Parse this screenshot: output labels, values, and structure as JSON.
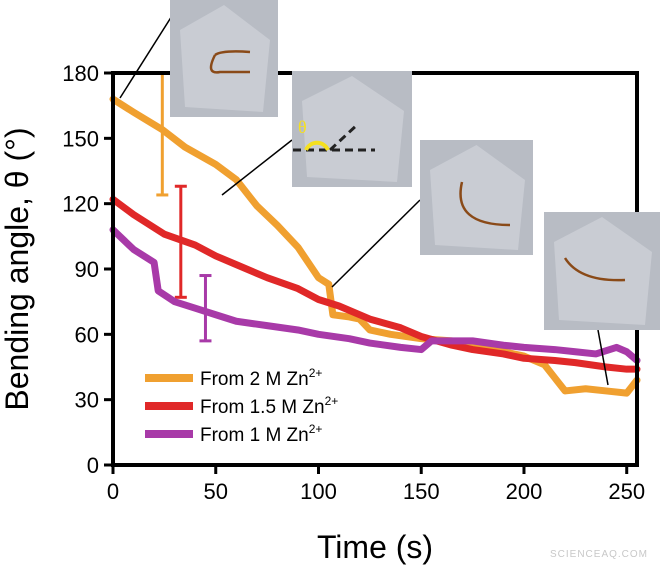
{
  "chart_data": {
    "type": "line",
    "xlabel": "Time (s)",
    "ylabel": "Bending angle, θ (°)",
    "xlim": [
      0,
      255
    ],
    "ylim": [
      0,
      180
    ],
    "xticks": [
      0,
      50,
      100,
      150,
      200,
      250
    ],
    "yticks": [
      0,
      30,
      60,
      90,
      120,
      150,
      180
    ],
    "grid": false,
    "legend_placement": "bottom-left",
    "series": [
      {
        "name": "From 2 M Zn2+",
        "label_main": "From 2 M Zn",
        "label_sup": "2+",
        "color": "#f0a030",
        "x": [
          0,
          10,
          24,
          35,
          50,
          60,
          70,
          80,
          90,
          100,
          105,
          107,
          115,
          120,
          125,
          135,
          150,
          165,
          175,
          190,
          200,
          210,
          215,
          220,
          230,
          240,
          250,
          255
        ],
        "y": [
          168,
          162,
          154,
          146,
          138,
          131,
          119,
          110,
          100,
          86,
          83,
          69,
          68,
          67,
          62,
          60,
          58,
          57,
          55,
          52,
          50,
          46,
          40,
          34,
          35,
          34,
          33,
          39
        ],
        "error_bar": {
          "x": 24,
          "low": 124,
          "high": 180
        }
      },
      {
        "name": "From 1.5 M Zn2+",
        "label_main": "From 1.5 M Zn",
        "label_sup": "2+",
        "color": "#e02828",
        "x": [
          0,
          10,
          25,
          40,
          50,
          60,
          75,
          90,
          100,
          110,
          125,
          140,
          150,
          165,
          175,
          190,
          200,
          215,
          225,
          240,
          250,
          255
        ],
        "y": [
          122,
          115,
          106,
          101,
          96,
          92,
          86,
          81,
          76,
          73,
          67,
          63,
          59,
          55,
          53,
          51,
          49,
          48,
          47,
          45,
          44,
          44
        ],
        "error_bar": {
          "x": 33,
          "low": 77,
          "high": 128
        }
      },
      {
        "name": "From 1 M Zn2+",
        "label_main": "From 1 M Zn",
        "label_sup": "2+",
        "color": "#a83aa8",
        "x": [
          0,
          10,
          20,
          22,
          30,
          40,
          50,
          60,
          75,
          90,
          100,
          115,
          125,
          140,
          150,
          155,
          165,
          175,
          190,
          200,
          215,
          225,
          235,
          245,
          250,
          255
        ],
        "y": [
          108,
          99,
          93,
          80,
          75,
          72,
          69,
          66,
          64,
          62,
          60,
          58,
          56,
          54,
          53,
          57,
          57,
          57,
          55,
          54,
          53,
          52,
          51,
          54,
          52,
          48
        ],
        "error_bar": {
          "x": 45,
          "low": 57,
          "high": 87
        }
      }
    ],
    "annotations": {
      "theta_symbol": "θ"
    }
  },
  "watermark": "SCIENCEAQ.COM",
  "colors": {
    "axis": "#000000",
    "photo_bg": "#b8bcc4",
    "fiber": "#8a4a18",
    "theta_arc": "#f5e020"
  }
}
